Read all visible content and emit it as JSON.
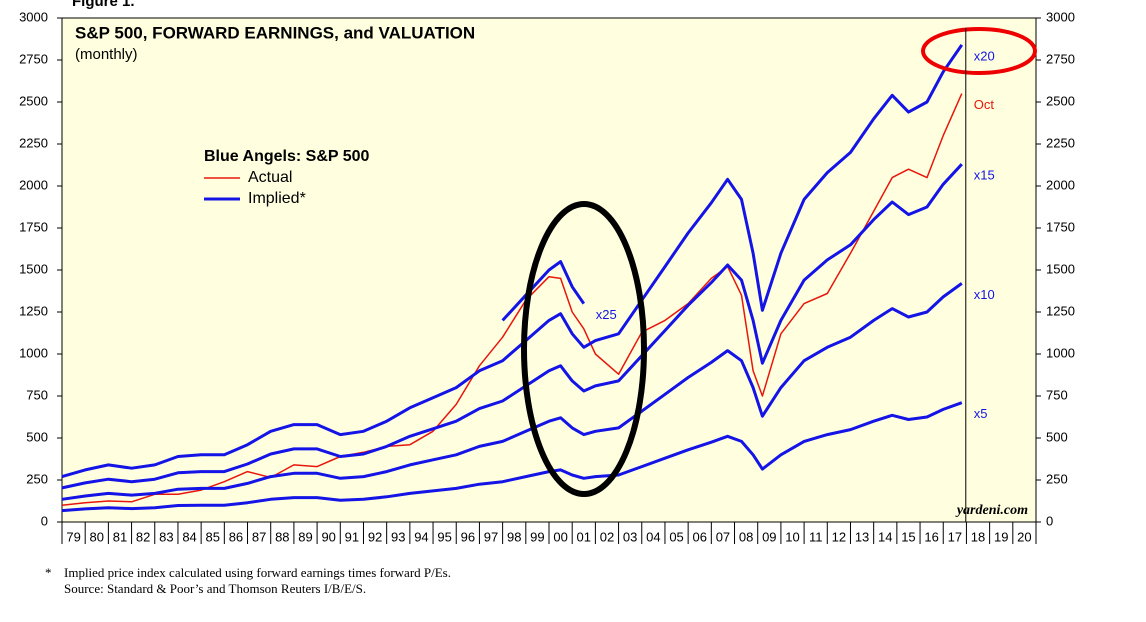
{
  "chart_data": {
    "type": "line",
    "figure_label": "Figure 1.",
    "title": "S&P 500, FORWARD EARNINGS, and VALUATION",
    "subtitle": "(monthly)",
    "legend": {
      "title": "Blue Angels: S&P 500",
      "entries": [
        {
          "name": "Actual",
          "color": "#e8160c"
        },
        {
          "name": "Implied*",
          "color": "#1414e6"
        }
      ]
    },
    "x": [
      1979,
      1980,
      1981,
      1982,
      1983,
      1984,
      1985,
      1986,
      1987,
      1988,
      1989,
      1990,
      1991,
      1992,
      1993,
      1994,
      1995,
      1996,
      1997,
      1998,
      1999,
      2000,
      2000.5,
      2001,
      2001.5,
      2002,
      2003,
      2004,
      2005,
      2006,
      2007,
      2007.7,
      2008.3,
      2008.8,
      2009.2,
      2010,
      2011,
      2012,
      2013,
      2014,
      2014.8,
      2015.5,
      2016.3,
      2017,
      2017.8
    ],
    "series": [
      {
        "name": "Actual",
        "end_label": "Oct",
        "color": "#e8160c",
        "width": 1.5,
        "values": [
          100,
          115,
          125,
          120,
          165,
          165,
          190,
          240,
          300,
          265,
          340,
          330,
          390,
          415,
          450,
          460,
          540,
          700,
          930,
          1100,
          1320,
          1460,
          1450,
          1250,
          1150,
          1000,
          880,
          1130,
          1200,
          1300,
          1450,
          1520,
          1350,
          900,
          750,
          1120,
          1300,
          1360,
          1600,
          1850,
          2050,
          2100,
          2050,
          2300,
          2550
        ]
      },
      {
        "name": "x5",
        "color": "#1414e6",
        "width": 3,
        "values": [
          68,
          78,
          85,
          80,
          85,
          98,
          100,
          100,
          115,
          135,
          145,
          145,
          130,
          135,
          150,
          170,
          185,
          200,
          225,
          240,
          270,
          300,
          310,
          280,
          260,
          270,
          280,
          330,
          380,
          430,
          475,
          510,
          480,
          400,
          315,
          400,
          480,
          520,
          550,
          600,
          635,
          610,
          625,
          670,
          710
        ]
      },
      {
        "name": "x10",
        "color": "#1414e6",
        "width": 3,
        "values": [
          135,
          155,
          170,
          160,
          170,
          195,
          200,
          200,
          230,
          270,
          290,
          290,
          260,
          270,
          300,
          340,
          370,
          400,
          450,
          480,
          540,
          600,
          620,
          560,
          520,
          540,
          560,
          660,
          760,
          860,
          950,
          1020,
          960,
          800,
          630,
          800,
          960,
          1040,
          1100,
          1200,
          1270,
          1220,
          1250,
          1340,
          1420
        ]
      },
      {
        "name": "x15",
        "color": "#1414e6",
        "width": 3,
        "values": [
          203,
          233,
          255,
          240,
          255,
          293,
          300,
          300,
          345,
          405,
          435,
          435,
          390,
          405,
          450,
          510,
          555,
          600,
          675,
          720,
          810,
          900,
          930,
          840,
          780,
          810,
          840,
          990,
          1140,
          1290,
          1425,
          1530,
          1440,
          1200,
          945,
          1200,
          1440,
          1560,
          1650,
          1800,
          1905,
          1830,
          1875,
          2010,
          2130
        ]
      },
      {
        "name": "x20",
        "color": "#1414e6",
        "width": 3,
        "values": [
          270,
          310,
          340,
          320,
          340,
          390,
          400,
          400,
          460,
          540,
          580,
          580,
          520,
          540,
          600,
          680,
          740,
          800,
          900,
          960,
          1080,
          1200,
          1240,
          1120,
          1040,
          1080,
          1120,
          1320,
          1520,
          1720,
          1900,
          2040,
          1920,
          1600,
          1260,
          1600,
          1920,
          2080,
          2200,
          2400,
          2540,
          2440,
          2500,
          2680,
          2840
        ]
      },
      {
        "name": "x25",
        "color": "#1414e6",
        "width": 3,
        "values": [
          null,
          null,
          null,
          null,
          null,
          null,
          null,
          null,
          null,
          null,
          null,
          null,
          null,
          null,
          null,
          null,
          null,
          null,
          null,
          1200,
          1350,
          1500,
          1550,
          1400,
          1300,
          null,
          null,
          null,
          null,
          null,
          null,
          null,
          null,
          null,
          null,
          null,
          null,
          null,
          null,
          null,
          null,
          null,
          null,
          null,
          null
        ]
      }
    ],
    "xlim": [
      1979,
      2021
    ],
    "xticks": [
      {
        "value": 1979,
        "label": "79"
      },
      {
        "value": 1980,
        "label": "80"
      },
      {
        "value": 1981,
        "label": "81"
      },
      {
        "value": 1982,
        "label": "82"
      },
      {
        "value": 1983,
        "label": "83"
      },
      {
        "value": 1984,
        "label": "84"
      },
      {
        "value": 1985,
        "label": "85"
      },
      {
        "value": 1986,
        "label": "86"
      },
      {
        "value": 1987,
        "label": "87"
      },
      {
        "value": 1988,
        "label": "88"
      },
      {
        "value": 1989,
        "label": "89"
      },
      {
        "value": 1990,
        "label": "90"
      },
      {
        "value": 1991,
        "label": "91"
      },
      {
        "value": 1992,
        "label": "92"
      },
      {
        "value": 1993,
        "label": "93"
      },
      {
        "value": 1994,
        "label": "94"
      },
      {
        "value": 1995,
        "label": "95"
      },
      {
        "value": 1996,
        "label": "96"
      },
      {
        "value": 1997,
        "label": "97"
      },
      {
        "value": 1998,
        "label": "98"
      },
      {
        "value": 1999,
        "label": "99"
      },
      {
        "value": 2000,
        "label": "00"
      },
      {
        "value": 2001,
        "label": "01"
      },
      {
        "value": 2002,
        "label": "02"
      },
      {
        "value": 2003,
        "label": "03"
      },
      {
        "value": 2004,
        "label": "04"
      },
      {
        "value": 2005,
        "label": "05"
      },
      {
        "value": 2006,
        "label": "06"
      },
      {
        "value": 2007,
        "label": "07"
      },
      {
        "value": 2008,
        "label": "08"
      },
      {
        "value": 2009,
        "label": "09"
      },
      {
        "value": 2010,
        "label": "10"
      },
      {
        "value": 2011,
        "label": "11"
      },
      {
        "value": 2012,
        "label": "12"
      },
      {
        "value": 2013,
        "label": "13"
      },
      {
        "value": 2014,
        "label": "14"
      },
      {
        "value": 2015,
        "label": "15"
      },
      {
        "value": 2016,
        "label": "16"
      },
      {
        "value": 2017,
        "label": "17"
      },
      {
        "value": 2018,
        "label": "18"
      },
      {
        "value": 2019,
        "label": "19"
      },
      {
        "value": 2020,
        "label": "20"
      }
    ],
    "ylim": [
      0,
      3000
    ],
    "yticks": [
      0,
      250,
      500,
      750,
      1000,
      1250,
      1500,
      1750,
      2000,
      2250,
      2500,
      2750,
      3000
    ],
    "source_credit": "yardeni.com",
    "footnotes": [
      "*",
      "Implied price index calculated using forward earnings times forward P/Es.",
      "Source: Standard & Poor’s and Thomson Reuters I/B/E/S."
    ]
  }
}
